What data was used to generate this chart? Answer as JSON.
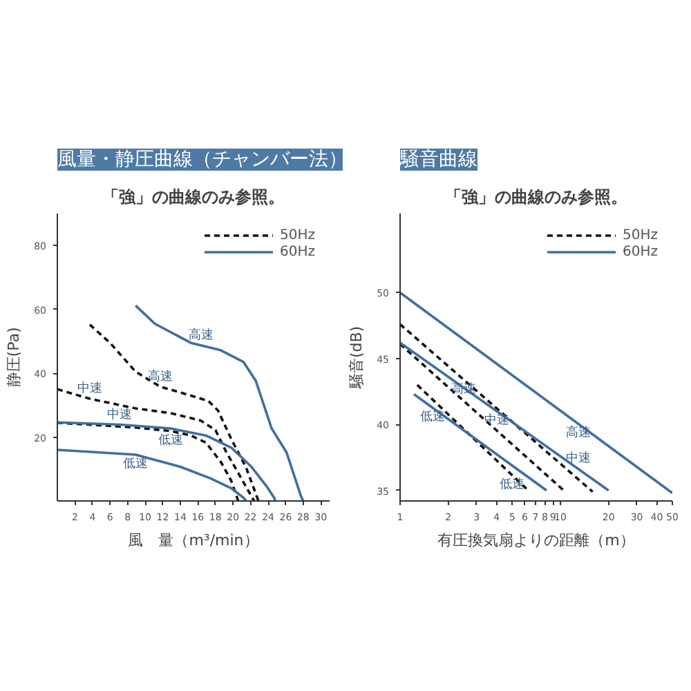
{
  "chart_data": [
    {
      "type": "line",
      "title": "風量・静圧曲線（チャンバー法）",
      "subtitle": "「強」の曲線のみ参照。",
      "xlabel": "風　量（m³/min）",
      "ylabel": "静圧(Pa)",
      "xlim": [
        0,
        31
      ],
      "ylim": [
        0,
        90
      ],
      "xticks": [
        2,
        4,
        6,
        8,
        10,
        12,
        14,
        16,
        18,
        20,
        22,
        24,
        26,
        28,
        30
      ],
      "yticks": [
        20,
        40,
        60,
        80
      ],
      "legend": "top right",
      "series": [
        {
          "name": "50Hz",
          "color": "#111111",
          "line_style": "dashed",
          "x": [
            3.7,
            6,
            8.9,
            11.7,
            14.6,
            17.2,
            18.3,
            19.8,
            21.5,
            22.9
          ],
          "values": [
            55.2,
            49.5,
            40.5,
            35.8,
            33.5,
            31.3,
            28.3,
            19.4,
            10.4,
            0
          ]
        },
        {
          "color": "#111111",
          "line_style": "dashed",
          "x": [
            0,
            3.7,
            8.9,
            12.9,
            16.3,
            18,
            19.2,
            20.9,
            22.4
          ],
          "values": [
            35,
            32,
            29,
            27.5,
            25.2,
            22.2,
            15.5,
            7.3,
            0
          ]
        },
        {
          "color": "#111111",
          "line_style": "dashed",
          "x": [
            0,
            4.8,
            8.9,
            12.9,
            15.2,
            16.9,
            18.6,
            19.8,
            20.6
          ],
          "values": [
            24.5,
            23.7,
            23,
            21.9,
            20.5,
            18.3,
            12.3,
            6.3,
            0
          ]
        },
        {
          "name": "60Hz",
          "color": "#3f6f9f",
          "line_style": "solid",
          "x": [
            8.9,
            11.1,
            15.2,
            18.6,
            21.2,
            22.6,
            24.4,
            26.1,
            27.7,
            28
          ],
          "values": [
            61.2,
            55.5,
            49.5,
            47.2,
            43.5,
            37.6,
            22.7,
            15.2,
            1.8,
            0
          ]
        },
        {
          "color": "#3f6f9f",
          "line_style": "solid",
          "x": [
            0,
            7.1,
            12.9,
            16.9,
            19.8,
            22.1,
            23.8,
            24.7,
            24.8
          ],
          "values": [
            24.6,
            23.9,
            22.7,
            20.5,
            16.7,
            10.7,
            4.7,
            1,
            0
          ]
        },
        {
          "color": "#3f6f9f",
          "line_style": "solid",
          "x": [
            0,
            8.9,
            14,
            17.5,
            19.8,
            21.2,
            21.5
          ],
          "values": [
            16,
            14.5,
            10.7,
            7,
            4,
            1,
            0
          ]
        }
      ],
      "annotations": [
        {
          "text": "高速",
          "x": 16.4,
          "y": 48.7
        },
        {
          "text": "高速",
          "x": 11.7,
          "y": 35.8
        },
        {
          "text": "中速",
          "x": 3.7,
          "y": 32
        },
        {
          "text": "中速",
          "x": 7.1,
          "y": 23.9
        },
        {
          "text": "低速",
          "x": 12.9,
          "y": 21.9
        },
        {
          "text": "低速",
          "x": 8.9,
          "y": 14.5
        }
      ]
    },
    {
      "type": "line",
      "title": "騒音曲線",
      "subtitle": "「強」の曲線のみ参照。",
      "xlabel": "有圧換気扇よりの距離（m）",
      "ylabel": "騒音(dB)",
      "log": "x",
      "xlim": [
        1,
        50
      ],
      "ylim": [
        34.2,
        56
      ],
      "xticks": [
        1,
        2,
        3,
        4,
        5,
        6,
        7,
        8,
        9,
        10,
        20,
        30,
        40,
        50
      ],
      "yticks": [
        35,
        40,
        45,
        50
      ],
      "legend": "top right",
      "series": [
        {
          "name": "50Hz",
          "color": "#111111",
          "line_style": "dashed",
          "x": [
            1,
            15.9
          ],
          "values": [
            47.6,
            34.9
          ]
        },
        {
          "color": "#111111",
          "line_style": "dashed",
          "x": [
            1,
            10.5
          ],
          "values": [
            46.1,
            35
          ]
        },
        {
          "color": "#111111",
          "line_style": "dashed",
          "x": [
            1.28,
            6.3
          ],
          "values": [
            43,
            35
          ]
        },
        {
          "name": "60Hz",
          "color": "#3f6f9f",
          "line_style": "solid",
          "x": [
            1,
            50
          ],
          "values": [
            50,
            34.8
          ]
        },
        {
          "color": "#3f6f9f",
          "line_style": "solid",
          "x": [
            1,
            20
          ],
          "values": [
            46.2,
            35
          ]
        },
        {
          "color": "#3f6f9f",
          "line_style": "solid",
          "x": [
            1.22,
            8.2
          ],
          "values": [
            42.3,
            35
          ]
        }
      ],
      "annotations": [
        {
          "text": "高速",
          "x": 2.5,
          "y": 43.39
        },
        {
          "text": "中速",
          "x": 4,
          "y": 39.56
        },
        {
          "text": "低速",
          "x": 5,
          "y": 36.16
        },
        {
          "text": "高速",
          "x": 12.9,
          "y": 40.06
        },
        {
          "text": "中速",
          "x": 12.9,
          "y": 36.64
        },
        {
          "text": "低速",
          "x": 1.6,
          "y": 41.26
        }
      ]
    }
  ]
}
